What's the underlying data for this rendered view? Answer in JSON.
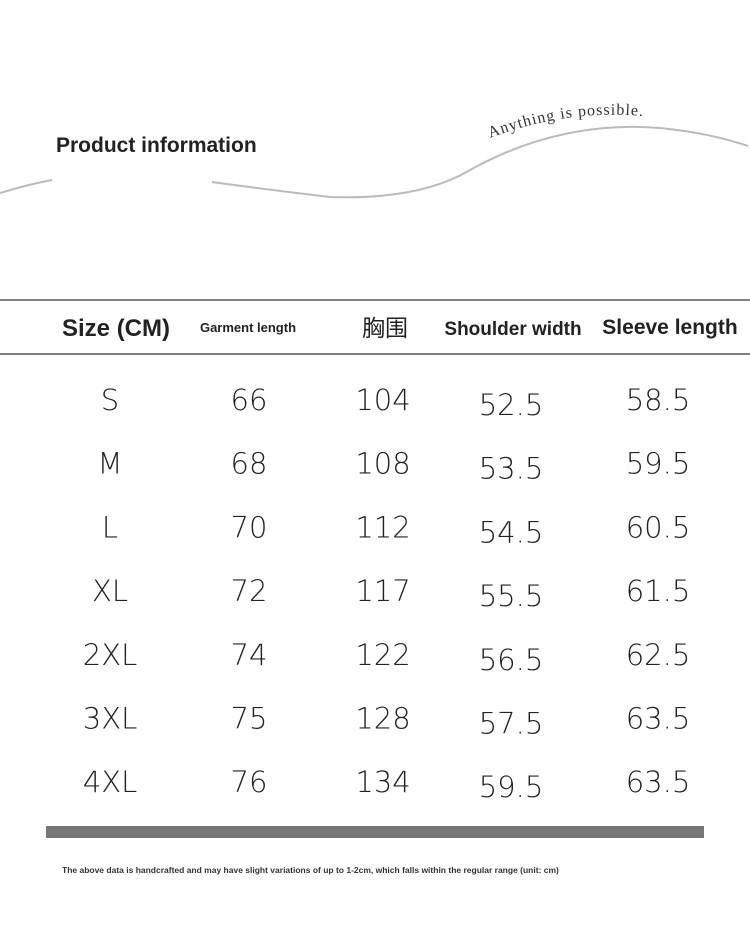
{
  "header": {
    "title": "Product information",
    "slogan": "Anything is possible."
  },
  "table": {
    "headers": [
      "Size (CM)",
      "Garment length",
      "胸围",
      "Shoulder width",
      "Sleeve length"
    ],
    "rows": [
      [
        "S",
        "66",
        "104",
        "52.5",
        "58.5"
      ],
      [
        "M",
        "68",
        "108",
        "53.5",
        "59.5"
      ],
      [
        "L",
        "70",
        "112",
        "54.5",
        "60.5"
      ],
      [
        "XL",
        "72",
        "117",
        "55.5",
        "61.5"
      ],
      [
        "2XL",
        "74",
        "122",
        "56.5",
        "62.5"
      ],
      [
        "3XL",
        "75",
        "128",
        "57.5",
        "63.5"
      ],
      [
        "4XL",
        "76",
        "134",
        "59.5",
        "63.5"
      ]
    ]
  },
  "footer": {
    "note": "The above data is handcrafted and may have slight variations of up to 1-2cm, which falls within the regular range (unit: cm)"
  }
}
